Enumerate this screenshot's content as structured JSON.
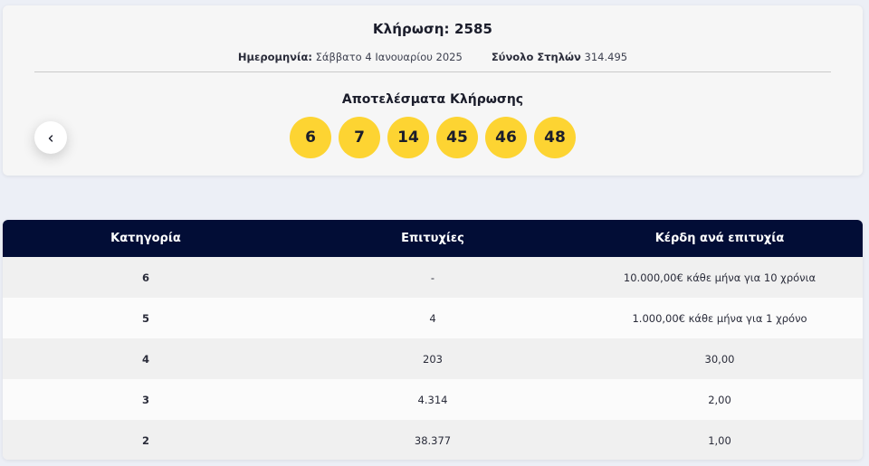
{
  "draw": {
    "title": "Κλήρωση: 2585",
    "date_label": "Ημερομηνία:",
    "date_value": "Σάββατο 4 Ιανουαρίου 2025",
    "columns_label": "Σύνολο Στηλών",
    "columns_value": "314.495",
    "results_title": "Αποτελέσματα Κλήρωσης",
    "numbers": [
      "6",
      "7",
      "14",
      "45",
      "46",
      "48"
    ],
    "ball_color": "#fdd432"
  },
  "table": {
    "headers": [
      "Κατηγορία",
      "Επιτυχίες",
      "Κέρδη ανά επιτυχία"
    ],
    "rows": [
      [
        "6",
        "-",
        "10.000,00€ κάθε μήνα για 10 χρόνια"
      ],
      [
        "5",
        "4",
        "1.000,00€ κάθε μήνα για 1 χρόνο"
      ],
      [
        "4",
        "203",
        "30,00"
      ],
      [
        "3",
        "4.314",
        "2,00"
      ],
      [
        "2",
        "38.377",
        "1,00"
      ]
    ],
    "header_color": "#020d36"
  },
  "icons": {
    "prev": "chevron-left-icon"
  }
}
